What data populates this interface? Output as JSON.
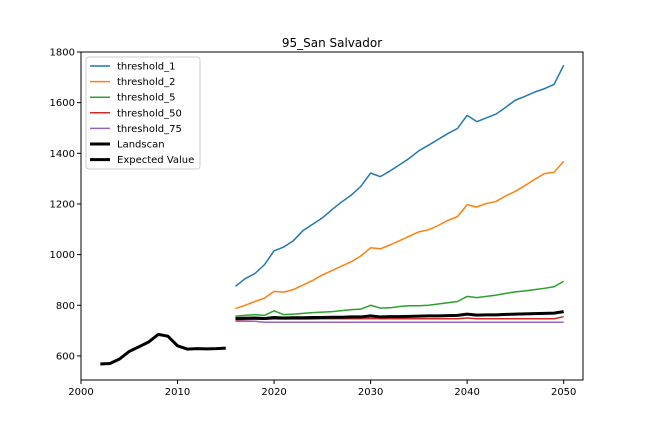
{
  "chart_data": {
    "type": "line",
    "title": "95_San Salvador",
    "xlabel": "",
    "ylabel": "",
    "xlim": [
      2000,
      2052
    ],
    "ylim": [
      505,
      1800
    ],
    "xticks": [
      2000,
      2010,
      2020,
      2030,
      2040,
      2050
    ],
    "yticks": [
      600,
      800,
      1000,
      1200,
      1400,
      1600,
      1800
    ],
    "grid": false,
    "legend_position": "upper-left",
    "series": [
      {
        "name": "threshold_1",
        "color": "#1f77b4",
        "width": 1.5,
        "x": [
          2016,
          2017,
          2018,
          2019,
          2020,
          2021,
          2022,
          2023,
          2024,
          2025,
          2026,
          2027,
          2028,
          2029,
          2030,
          2031,
          2032,
          2033,
          2034,
          2035,
          2036,
          2037,
          2038,
          2039,
          2040,
          2041,
          2042,
          2043,
          2044,
          2045,
          2046,
          2047,
          2048,
          2049,
          2050
        ],
        "y": [
          875,
          905,
          925,
          960,
          1015,
          1030,
          1055,
          1095,
          1120,
          1145,
          1178,
          1208,
          1235,
          1270,
          1322,
          1308,
          1330,
          1355,
          1380,
          1410,
          1432,
          1455,
          1478,
          1498,
          1550,
          1525,
          1540,
          1555,
          1582,
          1610,
          1625,
          1642,
          1655,
          1672,
          1748
        ]
      },
      {
        "name": "threshold_2",
        "color": "#ff7f0e",
        "width": 1.5,
        "x": [
          2016,
          2017,
          2018,
          2019,
          2020,
          2021,
          2022,
          2023,
          2024,
          2025,
          2026,
          2027,
          2028,
          2029,
          2030,
          2031,
          2032,
          2033,
          2034,
          2035,
          2036,
          2037,
          2038,
          2039,
          2040,
          2041,
          2042,
          2043,
          2044,
          2045,
          2046,
          2047,
          2048,
          2049,
          2050
        ],
        "y": [
          787,
          800,
          815,
          828,
          855,
          852,
          862,
          880,
          898,
          920,
          937,
          955,
          972,
          995,
          1027,
          1023,
          1038,
          1055,
          1073,
          1090,
          1098,
          1115,
          1135,
          1150,
          1197,
          1188,
          1202,
          1210,
          1232,
          1250,
          1273,
          1297,
          1320,
          1325,
          1368
        ]
      },
      {
        "name": "threshold_5",
        "color": "#2ca02c",
        "width": 1.5,
        "x": [
          2016,
          2017,
          2018,
          2019,
          2020,
          2021,
          2022,
          2023,
          2024,
          2025,
          2026,
          2027,
          2028,
          2029,
          2030,
          2031,
          2032,
          2033,
          2034,
          2035,
          2036,
          2037,
          2038,
          2039,
          2040,
          2041,
          2042,
          2043,
          2044,
          2045,
          2046,
          2047,
          2048,
          2049,
          2050
        ],
        "y": [
          757,
          760,
          763,
          760,
          778,
          763,
          765,
          768,
          771,
          773,
          775,
          779,
          783,
          785,
          800,
          789,
          790,
          795,
          798,
          798,
          800,
          805,
          810,
          815,
          835,
          830,
          835,
          840,
          847,
          853,
          857,
          862,
          867,
          873,
          895
        ]
      },
      {
        "name": "threshold_50",
        "color": "#d62728",
        "width": 1.5,
        "x": [
          2016,
          2017,
          2018,
          2019,
          2020,
          2021,
          2022,
          2023,
          2024,
          2025,
          2026,
          2027,
          2028,
          2029,
          2030,
          2031,
          2032,
          2033,
          2034,
          2035,
          2036,
          2037,
          2038,
          2039,
          2040,
          2041,
          2042,
          2043,
          2044,
          2045,
          2046,
          2047,
          2048,
          2049,
          2050
        ],
        "y": [
          743,
          744,
          745,
          745,
          746,
          746,
          746,
          746,
          746,
          747,
          747,
          747,
          747,
          747,
          748,
          747,
          747,
          747,
          747,
          747,
          747,
          747,
          747,
          747,
          750,
          747,
          747,
          747,
          747,
          747,
          747,
          747,
          747,
          747,
          755
        ]
      },
      {
        "name": "threshold_75",
        "color": "#9467bd",
        "width": 1.5,
        "x": [
          2016,
          2017,
          2018,
          2019,
          2020,
          2021,
          2022,
          2023,
          2024,
          2025,
          2026,
          2027,
          2028,
          2029,
          2030,
          2031,
          2032,
          2033,
          2034,
          2035,
          2036,
          2037,
          2038,
          2039,
          2040,
          2041,
          2042,
          2043,
          2044,
          2045,
          2046,
          2047,
          2048,
          2049,
          2050
        ],
        "y": [
          737,
          737,
          737,
          733,
          733,
          733,
          733,
          733,
          733,
          733,
          733,
          733,
          733,
          733,
          733,
          733,
          733,
          733,
          733,
          733,
          733,
          733,
          733,
          733,
          733,
          733,
          733,
          733,
          733,
          733,
          733,
          733,
          733,
          733,
          733
        ]
      },
      {
        "name": "Landscan",
        "color": "#000000",
        "width": 3,
        "x": [
          2002,
          2003,
          2004,
          2005,
          2006,
          2007,
          2008,
          2009,
          2010,
          2011,
          2012,
          2013,
          2014,
          2015
        ],
        "y": [
          568,
          570,
          588,
          618,
          636,
          655,
          685,
          678,
          640,
          627,
          629,
          628,
          629,
          631
        ]
      },
      {
        "name": "Expected Value",
        "color": "#000000",
        "width": 3,
        "x": [
          2016,
          2017,
          2018,
          2019,
          2020,
          2021,
          2022,
          2023,
          2024,
          2025,
          2026,
          2027,
          2028,
          2029,
          2030,
          2031,
          2032,
          2033,
          2034,
          2035,
          2036,
          2037,
          2038,
          2039,
          2040,
          2041,
          2042,
          2043,
          2044,
          2045,
          2046,
          2047,
          2048,
          2049,
          2050
        ],
        "y": [
          748,
          749,
          750,
          748,
          752,
          750,
          751,
          751,
          752,
          752,
          753,
          753,
          754,
          754,
          758,
          754,
          755,
          755,
          756,
          757,
          758,
          758,
          759,
          760,
          765,
          761,
          762,
          762,
          764,
          765,
          766,
          767,
          768,
          769,
          775
        ]
      }
    ]
  }
}
